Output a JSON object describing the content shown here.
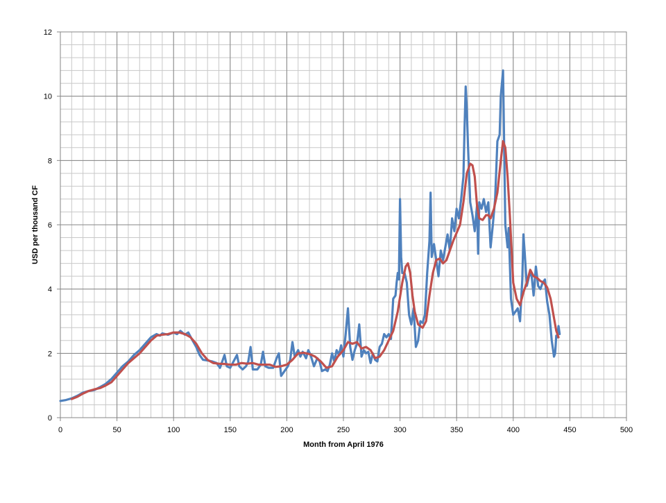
{
  "chart_data": {
    "type": "line",
    "title": "",
    "xlabel": "Month from April 1976",
    "ylabel": "USD per thousand CF",
    "xlim": [
      0,
      500
    ],
    "ylim": [
      0,
      12
    ],
    "xticks": [
      0,
      50,
      100,
      150,
      200,
      250,
      300,
      350,
      400,
      450,
      500
    ],
    "yticks": [
      0,
      2,
      4,
      6,
      8,
      10,
      12
    ],
    "x_minor_step": 10,
    "y_minor_step": 0.4,
    "grid": true,
    "legend": "none",
    "series": [
      {
        "color": "#4F81BD",
        "points": [
          [
            0,
            0.52
          ],
          [
            5,
            0.55
          ],
          [
            10,
            0.6
          ],
          [
            15,
            0.68
          ],
          [
            20,
            0.78
          ],
          [
            25,
            0.83
          ],
          [
            30,
            0.86
          ],
          [
            35,
            0.95
          ],
          [
            40,
            1.05
          ],
          [
            45,
            1.2
          ],
          [
            50,
            1.4
          ],
          [
            55,
            1.6
          ],
          [
            60,
            1.75
          ],
          [
            65,
            1.95
          ],
          [
            70,
            2.1
          ],
          [
            75,
            2.3
          ],
          [
            80,
            2.5
          ],
          [
            85,
            2.6
          ],
          [
            88,
            2.55
          ],
          [
            90,
            2.62
          ],
          [
            95,
            2.58
          ],
          [
            100,
            2.65
          ],
          [
            103,
            2.6
          ],
          [
            106,
            2.7
          ],
          [
            110,
            2.58
          ],
          [
            113,
            2.65
          ],
          [
            116,
            2.45
          ],
          [
            120,
            2.2
          ],
          [
            123,
            1.95
          ],
          [
            126,
            1.8
          ],
          [
            130,
            1.78
          ],
          [
            134,
            1.75
          ],
          [
            138,
            1.7
          ],
          [
            141,
            1.55
          ],
          [
            143,
            1.75
          ],
          [
            145,
            1.95
          ],
          [
            147,
            1.6
          ],
          [
            150,
            1.55
          ],
          [
            153,
            1.75
          ],
          [
            156,
            1.95
          ],
          [
            158,
            1.6
          ],
          [
            161,
            1.5
          ],
          [
            164,
            1.6
          ],
          [
            166,
            1.75
          ],
          [
            168,
            2.2
          ],
          [
            170,
            1.5
          ],
          [
            174,
            1.5
          ],
          [
            177,
            1.65
          ],
          [
            179,
            2.05
          ],
          [
            181,
            1.6
          ],
          [
            184,
            1.55
          ],
          [
            188,
            1.55
          ],
          [
            191,
            1.85
          ],
          [
            193,
            2.0
          ],
          [
            195,
            1.3
          ],
          [
            198,
            1.45
          ],
          [
            201,
            1.6
          ],
          [
            203,
            1.8
          ],
          [
            205,
            2.35
          ],
          [
            207,
            1.9
          ],
          [
            210,
            2.1
          ],
          [
            212,
            1.9
          ],
          [
            214,
            2.05
          ],
          [
            217,
            1.85
          ],
          [
            219,
            2.1
          ],
          [
            221,
            1.95
          ],
          [
            224,
            1.6
          ],
          [
            227,
            1.85
          ],
          [
            229,
            1.75
          ],
          [
            231,
            1.45
          ],
          [
            234,
            1.5
          ],
          [
            236,
            1.45
          ],
          [
            238,
            1.65
          ],
          [
            240,
            2.0
          ],
          [
            242,
            1.75
          ],
          [
            244,
            2.1
          ],
          [
            246,
            1.95
          ],
          [
            248,
            2.25
          ],
          [
            250,
            1.9
          ],
          [
            252,
            2.6
          ],
          [
            254,
            3.4
          ],
          [
            256,
            2.2
          ],
          [
            258,
            1.8
          ],
          [
            260,
            2.1
          ],
          [
            262,
            2.3
          ],
          [
            264,
            2.9
          ],
          [
            266,
            1.9
          ],
          [
            268,
            2.1
          ],
          [
            270,
            2.0
          ],
          [
            272,
            2.05
          ],
          [
            274,
            1.7
          ],
          [
            276,
            2.0
          ],
          [
            278,
            1.8
          ],
          [
            280,
            1.75
          ],
          [
            282,
            2.2
          ],
          [
            284,
            2.3
          ],
          [
            286,
            2.6
          ],
          [
            288,
            2.5
          ],
          [
            290,
            2.6
          ],
          [
            292,
            2.45
          ],
          [
            294,
            3.7
          ],
          [
            296,
            3.8
          ],
          [
            297,
            4.2
          ],
          [
            298,
            4.5
          ],
          [
            299,
            4.3
          ],
          [
            300,
            6.8
          ],
          [
            301,
            5.0
          ],
          [
            302,
            4.5
          ],
          [
            304,
            4.5
          ],
          [
            306,
            4.2
          ],
          [
            308,
            3.2
          ],
          [
            310,
            2.9
          ],
          [
            312,
            3.4
          ],
          [
            314,
            2.2
          ],
          [
            316,
            2.4
          ],
          [
            318,
            3.0
          ],
          [
            320,
            2.95
          ],
          [
            322,
            3.2
          ],
          [
            324,
            4.5
          ],
          [
            326,
            5.5
          ],
          [
            327,
            7.0
          ],
          [
            328,
            5.0
          ],
          [
            330,
            5.4
          ],
          [
            332,
            4.9
          ],
          [
            334,
            4.4
          ],
          [
            336,
            5.2
          ],
          [
            338,
            4.9
          ],
          [
            340,
            5.3
          ],
          [
            342,
            5.7
          ],
          [
            344,
            5.2
          ],
          [
            346,
            6.2
          ],
          [
            348,
            5.8
          ],
          [
            350,
            6.5
          ],
          [
            352,
            6.2
          ],
          [
            354,
            6.8
          ],
          [
            356,
            7.5
          ],
          [
            357,
            9.0
          ],
          [
            358,
            10.3
          ],
          [
            359,
            9.6
          ],
          [
            360,
            8.5
          ],
          [
            362,
            6.7
          ],
          [
            364,
            6.3
          ],
          [
            366,
            5.8
          ],
          [
            368,
            6.6
          ],
          [
            369,
            5.1
          ],
          [
            370,
            6.7
          ],
          [
            372,
            6.5
          ],
          [
            374,
            6.8
          ],
          [
            376,
            6.4
          ],
          [
            378,
            6.7
          ],
          [
            380,
            5.3
          ],
          [
            382,
            6.0
          ],
          [
            384,
            6.8
          ],
          [
            386,
            8.6
          ],
          [
            388,
            8.8
          ],
          [
            389,
            10.0
          ],
          [
            391,
            10.8
          ],
          [
            393,
            6.0
          ],
          [
            395,
            5.3
          ],
          [
            396,
            5.9
          ],
          [
            398,
            3.7
          ],
          [
            400,
            3.2
          ],
          [
            402,
            3.3
          ],
          [
            404,
            3.4
          ],
          [
            406,
            3.0
          ],
          [
            408,
            4.3
          ],
          [
            409,
            5.7
          ],
          [
            410,
            5.2
          ],
          [
            412,
            4.1
          ],
          [
            414,
            4.4
          ],
          [
            416,
            4.5
          ],
          [
            418,
            3.8
          ],
          [
            420,
            4.7
          ],
          [
            422,
            4.1
          ],
          [
            424,
            4.0
          ],
          [
            426,
            4.2
          ],
          [
            428,
            4.3
          ],
          [
            430,
            3.6
          ],
          [
            432,
            3.2
          ],
          [
            434,
            2.4
          ],
          [
            436,
            1.9
          ],
          [
            437,
            2.0
          ],
          [
            438,
            2.55
          ],
          [
            439,
            2.5
          ],
          [
            440,
            2.85
          ],
          [
            441,
            2.6
          ]
        ]
      },
      {
        "color": "#C0504D",
        "points": [
          [
            10,
            0.58
          ],
          [
            15,
            0.65
          ],
          [
            20,
            0.75
          ],
          [
            25,
            0.83
          ],
          [
            30,
            0.88
          ],
          [
            35,
            0.92
          ],
          [
            40,
            1.0
          ],
          [
            45,
            1.1
          ],
          [
            50,
            1.3
          ],
          [
            55,
            1.5
          ],
          [
            60,
            1.7
          ],
          [
            65,
            1.85
          ],
          [
            70,
            2.0
          ],
          [
            75,
            2.2
          ],
          [
            80,
            2.4
          ],
          [
            85,
            2.55
          ],
          [
            90,
            2.58
          ],
          [
            95,
            2.6
          ],
          [
            100,
            2.65
          ],
          [
            105,
            2.65
          ],
          [
            110,
            2.6
          ],
          [
            115,
            2.5
          ],
          [
            120,
            2.3
          ],
          [
            125,
            2.0
          ],
          [
            130,
            1.8
          ],
          [
            135,
            1.7
          ],
          [
            140,
            1.68
          ],
          [
            145,
            1.67
          ],
          [
            150,
            1.65
          ],
          [
            155,
            1.65
          ],
          [
            160,
            1.7
          ],
          [
            165,
            1.68
          ],
          [
            170,
            1.7
          ],
          [
            175,
            1.65
          ],
          [
            180,
            1.65
          ],
          [
            185,
            1.65
          ],
          [
            190,
            1.58
          ],
          [
            195,
            1.6
          ],
          [
            200,
            1.65
          ],
          [
            205,
            1.8
          ],
          [
            210,
            2.0
          ],
          [
            215,
            2.02
          ],
          [
            220,
            1.98
          ],
          [
            225,
            1.9
          ],
          [
            230,
            1.75
          ],
          [
            235,
            1.55
          ],
          [
            240,
            1.6
          ],
          [
            245,
            1.9
          ],
          [
            250,
            2.1
          ],
          [
            254,
            2.35
          ],
          [
            258,
            2.3
          ],
          [
            262,
            2.35
          ],
          [
            266,
            2.15
          ],
          [
            270,
            2.2
          ],
          [
            274,
            2.1
          ],
          [
            278,
            1.85
          ],
          [
            282,
            1.9
          ],
          [
            286,
            2.1
          ],
          [
            290,
            2.4
          ],
          [
            294,
            2.7
          ],
          [
            298,
            3.3
          ],
          [
            302,
            4.2
          ],
          [
            305,
            4.7
          ],
          [
            307,
            4.8
          ],
          [
            309,
            4.5
          ],
          [
            311,
            3.8
          ],
          [
            313,
            3.3
          ],
          [
            316,
            2.9
          ],
          [
            320,
            2.8
          ],
          [
            323,
            3.0
          ],
          [
            326,
            3.8
          ],
          [
            329,
            4.5
          ],
          [
            332,
            4.9
          ],
          [
            335,
            4.95
          ],
          [
            338,
            4.8
          ],
          [
            341,
            4.9
          ],
          [
            344,
            5.2
          ],
          [
            347,
            5.5
          ],
          [
            350,
            5.75
          ],
          [
            353,
            6.0
          ],
          [
            356,
            6.7
          ],
          [
            359,
            7.6
          ],
          [
            362,
            7.9
          ],
          [
            364,
            7.85
          ],
          [
            366,
            7.5
          ],
          [
            368,
            6.6
          ],
          [
            370,
            6.2
          ],
          [
            373,
            6.15
          ],
          [
            376,
            6.3
          ],
          [
            378,
            6.3
          ],
          [
            380,
            6.2
          ],
          [
            383,
            6.5
          ],
          [
            386,
            7.0
          ],
          [
            389,
            8.0
          ],
          [
            391,
            8.6
          ],
          [
            393,
            8.4
          ],
          [
            395,
            7.5
          ],
          [
            397,
            6.3
          ],
          [
            400,
            4.2
          ],
          [
            403,
            3.7
          ],
          [
            406,
            3.5
          ],
          [
            409,
            3.9
          ],
          [
            412,
            4.2
          ],
          [
            415,
            4.6
          ],
          [
            418,
            4.4
          ],
          [
            421,
            4.35
          ],
          [
            424,
            4.25
          ],
          [
            427,
            4.2
          ],
          [
            430,
            4.05
          ],
          [
            433,
            3.7
          ],
          [
            436,
            3.1
          ],
          [
            438,
            2.7
          ],
          [
            440,
            2.5
          ]
        ]
      }
    ]
  }
}
